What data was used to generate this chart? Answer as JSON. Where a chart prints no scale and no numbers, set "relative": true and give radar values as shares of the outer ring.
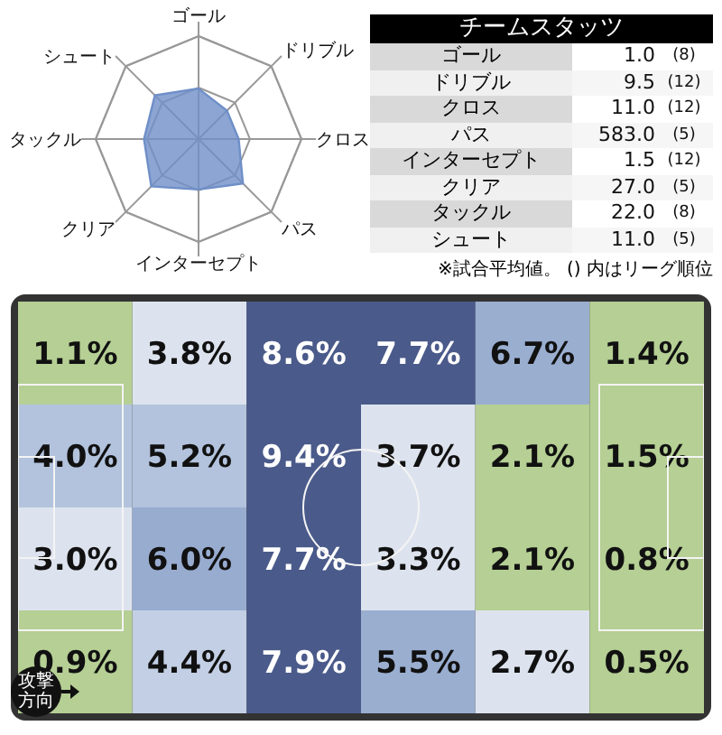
{
  "chart_data": [
    {
      "type": "radar",
      "categories": [
        "ゴール",
        "ドリブル",
        "クロス",
        "パス",
        "インターセプト",
        "クリア",
        "タックル",
        "シュート"
      ],
      "relative": true,
      "grid": true,
      "series": [
        {
          "color": "#6f8fc8",
          "values": [
            0.49,
            0.39,
            0.39,
            0.61,
            0.49,
            0.65,
            0.53,
            0.6
          ]
        }
      ]
    },
    {
      "type": "other",
      "title": "チームスタッツ",
      "categories": [
        "ゴール",
        "ドリブル",
        "クロス",
        "パス",
        "インターセプト",
        "クリア",
        "タックル",
        "シュート"
      ],
      "series": [
        {
          "colors": [
            "#ffffff",
            "#f6f6f6",
            "#ffffff",
            "#f6f6f6",
            "#ffffff",
            "#f6f6f6",
            "#ffffff",
            "#f6f6f6"
          ],
          "values": [
            1.0,
            9.5,
            11.0,
            583.0,
            1.5,
            27.0,
            22.0,
            11.0
          ],
          "value_labels": [
            "1.0",
            "9.5",
            "11.0",
            "583.0",
            "1.5",
            "27.0",
            "22.0",
            "11.0"
          ]
        },
        {
          "colors": [
            "#ffffff",
            "#f6f6f6",
            "#ffffff",
            "#f6f6f6",
            "#ffffff",
            "#f6f6f6",
            "#ffffff",
            "#f6f6f6"
          ],
          "values": [
            8,
            12,
            12,
            5,
            12,
            5,
            8,
            5
          ],
          "value_labels": [
            "(8)",
            "(12)",
            "(12)",
            "(5)",
            "(12)",
            "(5)",
            "(8)",
            "(5)"
          ]
        }
      ],
      "annotations": [
        "※試合平均値。 () 内はリーグ順位"
      ]
    },
    {
      "type": "heatmap",
      "categories": [
        null,
        null,
        null,
        null,
        null,
        null
      ],
      "y_categories": [
        null,
        null,
        null,
        null
      ],
      "cells": [
        [
          1.1,
          3.8,
          8.6,
          7.7,
          6.7,
          1.4
        ],
        [
          4.0,
          5.2,
          9.4,
          3.7,
          2.1,
          1.5
        ],
        [
          3.0,
          6.0,
          7.7,
          3.3,
          2.1,
          0.8
        ],
        [
          0.9,
          4.4,
          7.9,
          5.5,
          2.7,
          0.5
        ]
      ],
      "cell_labels": [
        [
          "1.1%",
          "3.8%",
          "8.6%",
          "7.7%",
          "6.7%",
          "1.4%"
        ],
        [
          "4.0%",
          "5.2%",
          "9.4%",
          "3.7%",
          "2.1%",
          "1.5%"
        ],
        [
          "3.0%",
          "6.0%",
          "7.7%",
          "3.3%",
          "2.1%",
          "0.8%"
        ],
        [
          "0.9%",
          "4.4%",
          "7.9%",
          "5.5%",
          "2.7%",
          "0.5%"
        ]
      ],
      "colors": [
        [
          "#b5cf94",
          "#dde3ee",
          "#4a5a8a",
          "#4a5a8a",
          "#9aaed0",
          "#b5cf94"
        ],
        [
          "#b3c3dd",
          "#b3c3dd",
          "#4a5a8a",
          "#dde3ee",
          "#b5cf94",
          "#b5cf94"
        ],
        [
          "#dde3ee",
          "#98acd0",
          "#4a5a8a",
          "#dde3ee",
          "#b5cf94",
          "#b5cf94"
        ],
        [
          "#b5cf94",
          "#c3cfe4",
          "#4a5a8a",
          "#9aaed0",
          "#dde3ee",
          "#b5cf94"
        ]
      ],
      "annotations": [
        "攻撃方向"
      ]
    }
  ]
}
